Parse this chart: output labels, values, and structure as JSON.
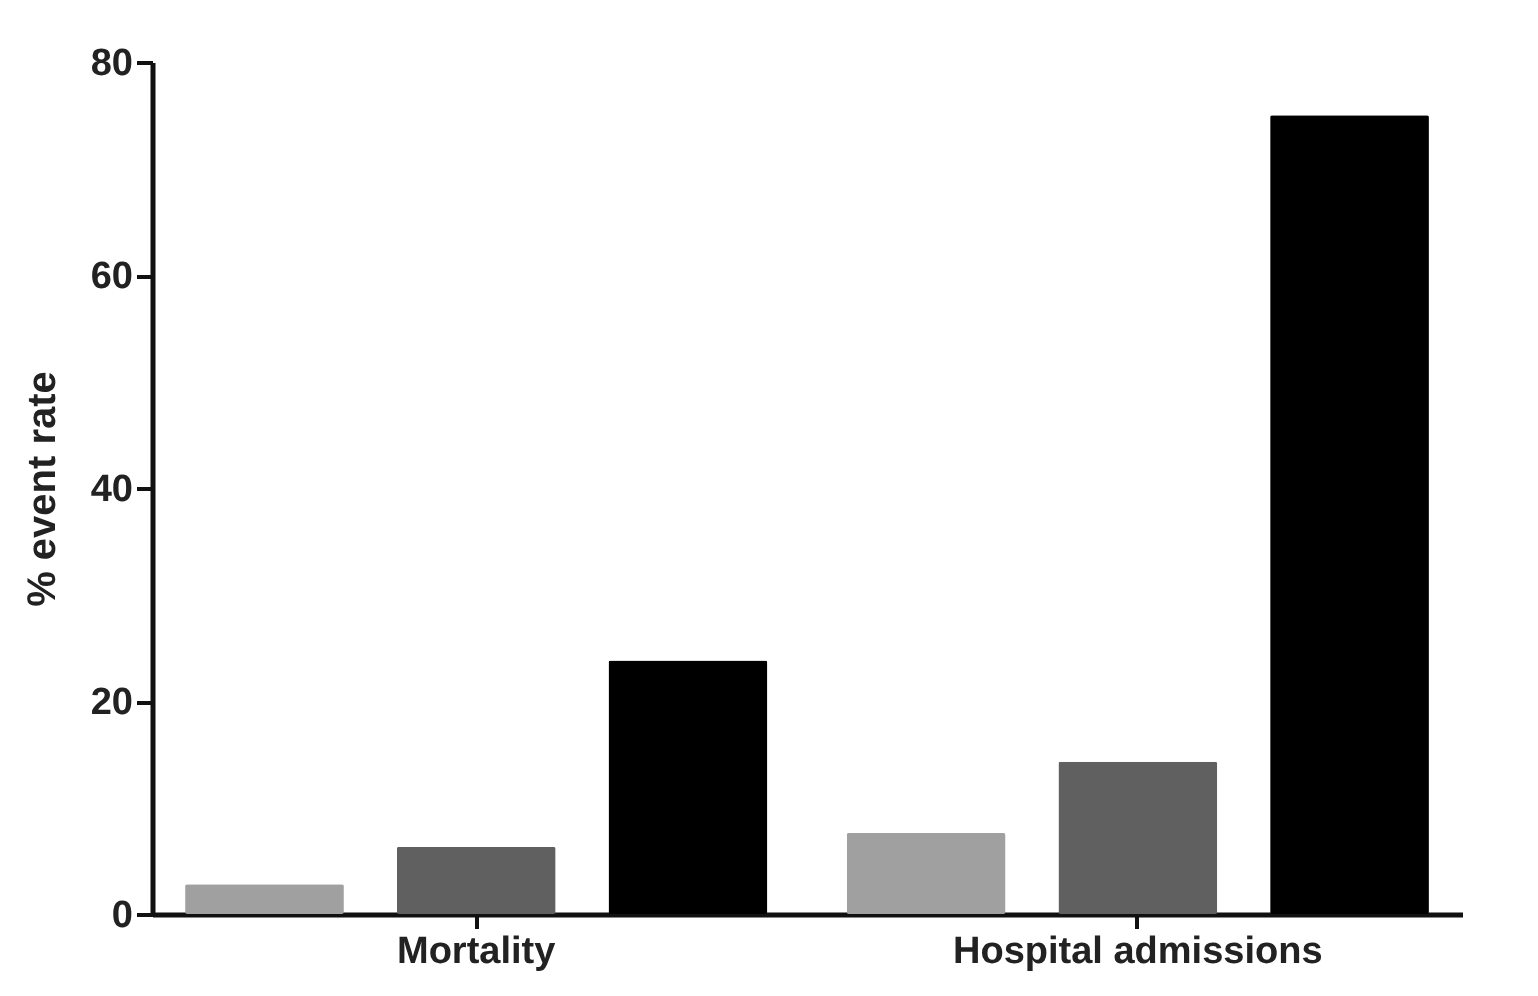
{
  "chart_data": {
    "type": "bar",
    "ylabel": "% event rate",
    "categories": [
      "Mortality",
      "Hospital admissions"
    ],
    "series": [
      {
        "color": "#a0a0a0",
        "values": [
          2.8,
          7.6
        ]
      },
      {
        "color": "#606060",
        "values": [
          6.3,
          14.3
        ]
      },
      {
        "color": "#000000",
        "values": [
          23.8,
          75
        ]
      }
    ],
    "ylim": [
      0,
      80
    ],
    "yticks": [
      0,
      20,
      40,
      60,
      80
    ],
    "grid": false,
    "legend": false
  }
}
